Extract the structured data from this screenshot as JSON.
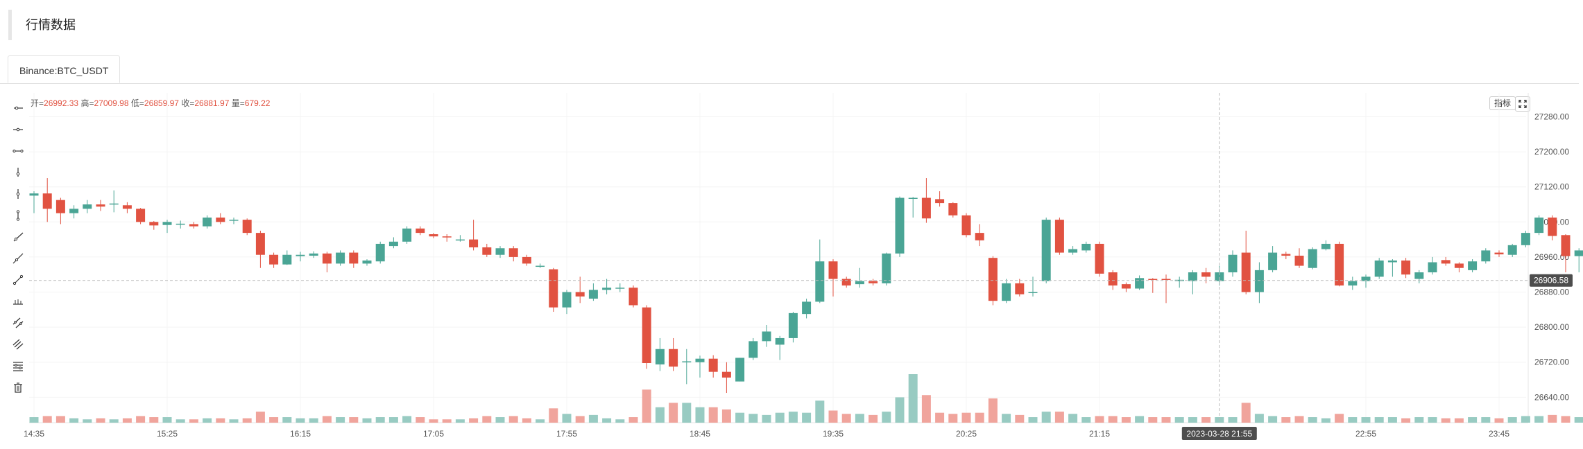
{
  "page": {
    "title": "行情数据"
  },
  "tabs": [
    {
      "label": "Binance:BTC_USDT",
      "active": true
    }
  ],
  "ohlc": {
    "open_label": "开",
    "open": "26992.33",
    "high_label": "高",
    "high": "27009.98",
    "low_label": "低",
    "low": "26859.97",
    "close_label": "收",
    "close": "26881.97",
    "vol_label": "量",
    "vol": "679.22"
  },
  "controls": {
    "indicator_label": "指标",
    "fullscreen_icon": "fullscreen-icon"
  },
  "colors": {
    "up": "#4aa595",
    "down": "#e15241",
    "up_vol": "#98cbc2",
    "down_vol": "#f0a49c",
    "grid": "#f4f4f4",
    "price_tag": "#4d4d4d"
  },
  "tools": [
    "horizontal-ray-icon",
    "horizontal-line-icon",
    "horizontal-segment-icon",
    "vertical-ray-icon",
    "vertical-line-icon",
    "vertical-segment-icon",
    "ray-line-icon",
    "straight-line-icon",
    "segment-icon",
    "price-line-icon",
    "parallel-channel-icon",
    "price-channel-icon",
    "fibonacci-icon",
    "delete-icon"
  ],
  "chart_data": {
    "type": "candlestick",
    "symbol": "Binance:BTC_USDT",
    "y_ticks": [
      "27280.00",
      "27200.00",
      "27120.00",
      "27040.00",
      "26960.00",
      "26880.00",
      "26800.00",
      "26720.00",
      "26640.00"
    ],
    "ylim": [
      26620,
      27325
    ],
    "last_price": "26906.58",
    "x_ticks": [
      {
        "label": "14:35",
        "index": 0
      },
      {
        "label": "15:25",
        "index": 10
      },
      {
        "label": "16:15",
        "index": 20
      },
      {
        "label": "17:05",
        "index": 30
      },
      {
        "label": "17:55",
        "index": 40
      },
      {
        "label": "18:45",
        "index": 50
      },
      {
        "label": "19:35",
        "index": 60
      },
      {
        "label": "20:25",
        "index": 70
      },
      {
        "label": "21:15",
        "index": 80
      },
      {
        "label": "22:55",
        "index": 100
      },
      {
        "label": "23:45",
        "index": 110
      }
    ],
    "crosshair": {
      "label": "2023-03-28 21:55",
      "index": 89
    },
    "candles": [
      [
        27100,
        27105,
        27060,
        27110,
        5
      ],
      [
        27105,
        27070,
        27040,
        27140,
        6
      ],
      [
        27090,
        27060,
        27035,
        27095,
        6
      ],
      [
        27060,
        27070,
        27048,
        27078,
        4
      ],
      [
        27070,
        27080,
        27060,
        27090,
        3
      ],
      [
        27080,
        27075,
        27065,
        27090,
        4
      ],
      [
        27080,
        27082,
        27062,
        27112,
        3
      ],
      [
        27078,
        27070,
        27060,
        27085,
        4
      ],
      [
        27070,
        27040,
        27035,
        27072,
        6
      ],
      [
        27040,
        27032,
        27022,
        27042,
        5
      ],
      [
        27033,
        27040,
        27015,
        27045,
        5
      ],
      [
        27035,
        27036,
        27025,
        27043,
        3
      ],
      [
        27035,
        27030,
        27025,
        27040,
        3
      ],
      [
        27030,
        27050,
        27025,
        27055,
        4
      ],
      [
        27050,
        27040,
        27035,
        27060,
        4
      ],
      [
        27045,
        27045,
        27035,
        27050,
        3
      ],
      [
        27045,
        27015,
        27010,
        27048,
        4
      ],
      [
        27015,
        26965,
        26935,
        27020,
        10
      ],
      [
        26965,
        26943,
        26935,
        26970,
        5
      ],
      [
        26943,
        26965,
        26942,
        26975,
        5
      ],
      [
        26962,
        26965,
        26950,
        26972,
        4
      ],
      [
        26963,
        26968,
        26958,
        26973,
        4
      ],
      [
        26968,
        26945,
        26925,
        26972,
        6
      ],
      [
        26945,
        26970,
        26940,
        26975,
        5
      ],
      [
        26970,
        26945,
        26935,
        26975,
        5
      ],
      [
        26945,
        26952,
        26940,
        26955,
        4
      ],
      [
        26950,
        26990,
        26945,
        26995,
        5
      ],
      [
        26985,
        26995,
        26980,
        27005,
        5
      ],
      [
        26995,
        27025,
        26990,
        27030,
        6
      ],
      [
        27025,
        27015,
        27010,
        27030,
        5
      ],
      [
        27012,
        27007,
        27003,
        27015,
        3
      ],
      [
        27007,
        27005,
        26995,
        27012,
        3
      ],
      [
        27000,
        27000,
        26995,
        27010,
        3
      ],
      [
        27000,
        26982,
        26975,
        27045,
        4
      ],
      [
        26982,
        26965,
        26960,
        26990,
        6
      ],
      [
        26965,
        26980,
        26958,
        26985,
        5
      ],
      [
        26980,
        26960,
        26950,
        26985,
        6
      ],
      [
        26960,
        26945,
        26940,
        26965,
        4
      ],
      [
        26940,
        26940,
        26935,
        26945,
        3
      ],
      [
        26932,
        26845,
        26835,
        26935,
        13
      ],
      [
        26845,
        26880,
        26830,
        26885,
        8
      ],
      [
        26880,
        26870,
        26855,
        26915,
        6
      ],
      [
        26865,
        26885,
        26860,
        26900,
        7
      ],
      [
        26885,
        26890,
        26875,
        26910,
        4
      ],
      [
        26888,
        26890,
        26880,
        26900,
        3
      ],
      [
        26890,
        26850,
        26845,
        26895,
        5
      ],
      [
        26845,
        26718,
        26705,
        26850,
        30
      ],
      [
        26715,
        26750,
        26700,
        26775,
        14
      ],
      [
        26750,
        26710,
        26700,
        26775,
        18
      ],
      [
        26720,
        26722,
        26670,
        26750,
        18
      ],
      [
        26720,
        26728,
        26685,
        26735,
        14
      ],
      [
        26728,
        26698,
        26685,
        26736,
        14
      ],
      [
        26698,
        26685,
        26650,
        26720,
        12
      ],
      [
        26676,
        26730,
        26676,
        26730,
        9
      ],
      [
        26730,
        26768,
        26725,
        26775,
        8
      ],
      [
        26768,
        26790,
        26755,
        26805,
        7
      ],
      [
        26760,
        26775,
        26725,
        26780,
        9
      ],
      [
        26775,
        26832,
        26765,
        26835,
        10
      ],
      [
        26830,
        26858,
        26820,
        26865,
        9
      ],
      [
        26858,
        26950,
        26855,
        27000,
        20
      ],
      [
        26950,
        26910,
        26870,
        26955,
        11
      ],
      [
        26910,
        26895,
        26890,
        26915,
        8
      ],
      [
        26898,
        26905,
        26890,
        26935,
        8
      ],
      [
        26905,
        26900,
        26895,
        26910,
        7
      ],
      [
        26900,
        26968,
        26895,
        26970,
        10
      ],
      [
        26968,
        27095,
        26960,
        27098,
        23
      ],
      [
        27093,
        27095,
        27050,
        27097,
        44
      ],
      [
        27095,
        27048,
        27038,
        27140,
        25
      ],
      [
        27092,
        27083,
        27075,
        27110,
        9
      ],
      [
        27083,
        27055,
        27050,
        27085,
        8
      ],
      [
        27055,
        27010,
        27005,
        27060,
        9
      ],
      [
        27015,
        26998,
        26985,
        27035,
        9
      ],
      [
        26958,
        26860,
        26850,
        26962,
        22
      ],
      [
        26860,
        26900,
        26855,
        26910,
        8
      ],
      [
        26900,
        26875,
        26870,
        26910,
        7
      ],
      [
        26880,
        26880,
        26870,
        26915,
        5
      ],
      [
        26905,
        27045,
        26900,
        27050,
        10
      ],
      [
        27045,
        26970,
        26965,
        27050,
        10
      ],
      [
        26970,
        26978,
        26965,
        26985,
        8
      ],
      [
        26975,
        26990,
        26970,
        26995,
        5
      ],
      [
        26990,
        26922,
        26915,
        26995,
        6
      ],
      [
        26925,
        26895,
        26885,
        26930,
        6
      ],
      [
        26898,
        26888,
        26880,
        26902,
        5
      ],
      [
        26888,
        26912,
        26885,
        26918,
        6
      ],
      [
        26910,
        26908,
        26878,
        26912,
        5
      ],
      [
        26910,
        26908,
        26855,
        26920,
        5
      ],
      [
        26905,
        26908,
        26890,
        26915,
        5
      ],
      [
        26905,
        26925,
        26875,
        26930,
        5
      ],
      [
        26925,
        26915,
        26900,
        26935,
        5
      ],
      [
        26905,
        26925,
        26895,
        26940,
        5
      ],
      [
        26925,
        26965,
        26915,
        26975,
        5
      ],
      [
        26970,
        26880,
        26875,
        27020,
        18
      ],
      [
        26880,
        26930,
        26855,
        26948,
        8
      ],
      [
        26930,
        26970,
        26925,
        26985,
        6
      ],
      [
        26967,
        26963,
        26955,
        26972,
        5
      ],
      [
        26963,
        26940,
        26935,
        26980,
        6
      ],
      [
        26935,
        26978,
        26932,
        26982,
        5
      ],
      [
        26978,
        26990,
        26975,
        26998,
        4
      ],
      [
        26990,
        26895,
        26893,
        26995,
        8
      ],
      [
        26895,
        26905,
        26885,
        26915,
        5
      ],
      [
        26905,
        26915,
        26890,
        26920,
        5
      ],
      [
        26915,
        26952,
        26910,
        26958,
        5
      ],
      [
        26948,
        26952,
        26915,
        26955,
        5
      ],
      [
        26952,
        26920,
        26912,
        26958,
        4
      ],
      [
        26910,
        26925,
        26900,
        26930,
        5
      ],
      [
        26925,
        26948,
        26920,
        26960,
        5
      ],
      [
        26953,
        26945,
        26940,
        26960,
        4
      ],
      [
        26945,
        26935,
        26925,
        26948,
        4
      ],
      [
        26930,
        26950,
        26925,
        26955,
        5
      ],
      [
        26950,
        26975,
        26945,
        26980,
        5
      ],
      [
        26970,
        26966,
        26960,
        26975,
        4
      ],
      [
        26965,
        26987,
        26960,
        26990,
        5
      ],
      [
        26987,
        27015,
        26982,
        27020,
        6
      ],
      [
        27015,
        27050,
        27010,
        27055,
        6
      ],
      [
        27050,
        27008,
        26998,
        27055,
        7
      ],
      [
        27010,
        26962,
        26925,
        27012,
        6
      ],
      [
        26962,
        26975,
        26925,
        26980,
        5
      ]
    ]
  }
}
